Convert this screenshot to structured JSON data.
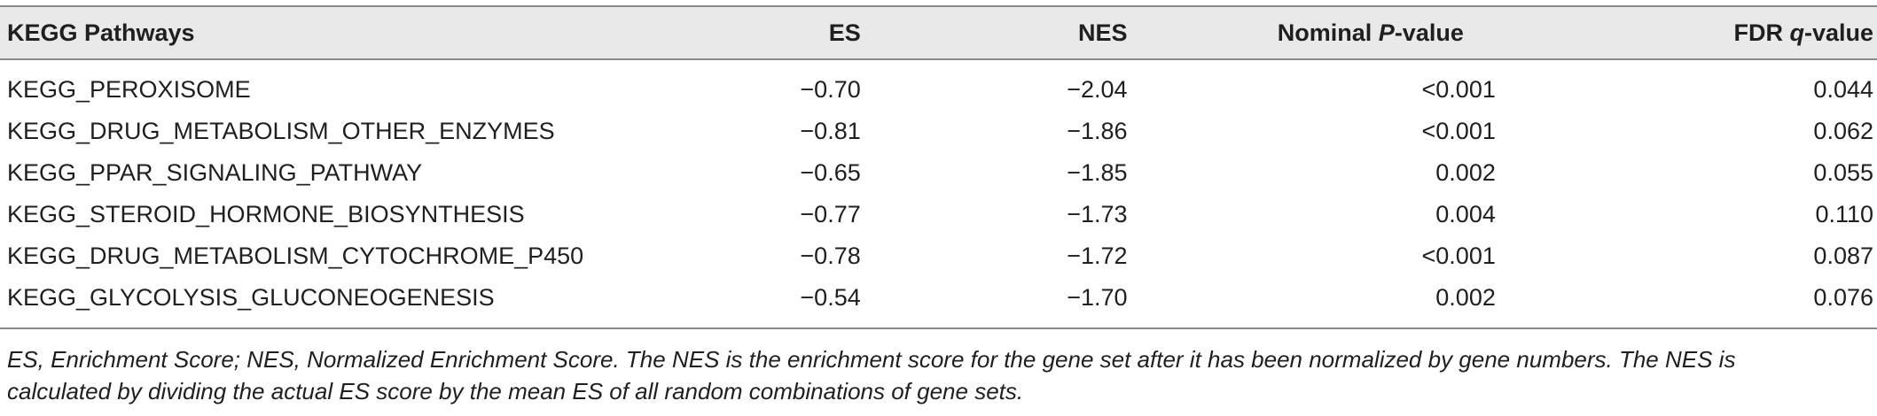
{
  "table": {
    "headers": {
      "pathway": "KEGG Pathways",
      "es": "ES",
      "nes": "NES",
      "pvalue_prefix": "Nominal ",
      "pvalue_italic": "P",
      "pvalue_suffix": "-value",
      "fdr_prefix": "FDR ",
      "fdr_italic": "q",
      "fdr_suffix": "-value"
    },
    "rows": [
      {
        "pathway": "KEGG_PEROXISOME",
        "es": "−0.70",
        "nes": "−2.04",
        "pvalue": "<0.001",
        "fdr": "0.044"
      },
      {
        "pathway": "KEGG_DRUG_METABOLISM_OTHER_ENZYMES",
        "es": "−0.81",
        "nes": "−1.86",
        "pvalue": "<0.001",
        "fdr": "0.062"
      },
      {
        "pathway": "KEGG_PPAR_SIGNALING_PATHWAY",
        "es": "−0.65",
        "nes": "−1.85",
        "pvalue": "0.002",
        "fdr": "0.055"
      },
      {
        "pathway": "KEGG_STEROID_HORMONE_BIOSYNTHESIS",
        "es": "−0.77",
        "nes": "−1.73",
        "pvalue": "0.004",
        "fdr": "0.110"
      },
      {
        "pathway": "KEGG_DRUG_METABOLISM_CYTOCHROME_P450",
        "es": "−0.78",
        "nes": "−1.72",
        "pvalue": "<0.001",
        "fdr": "0.087"
      },
      {
        "pathway": "KEGG_GLYCOLYSIS_GLUCONEOGENESIS",
        "es": "−0.54",
        "nes": "−1.70",
        "pvalue": "0.002",
        "fdr": "0.076"
      }
    ]
  },
  "footnote": {
    "line1": "ES, Enrichment Score; NES, Normalized Enrichment Score. The NES is the enrichment score for the gene set after it has been normalized by gene numbers. The NES is",
    "line2": "calculated by dividing the actual ES score by the mean ES of all random combinations of gene sets."
  }
}
